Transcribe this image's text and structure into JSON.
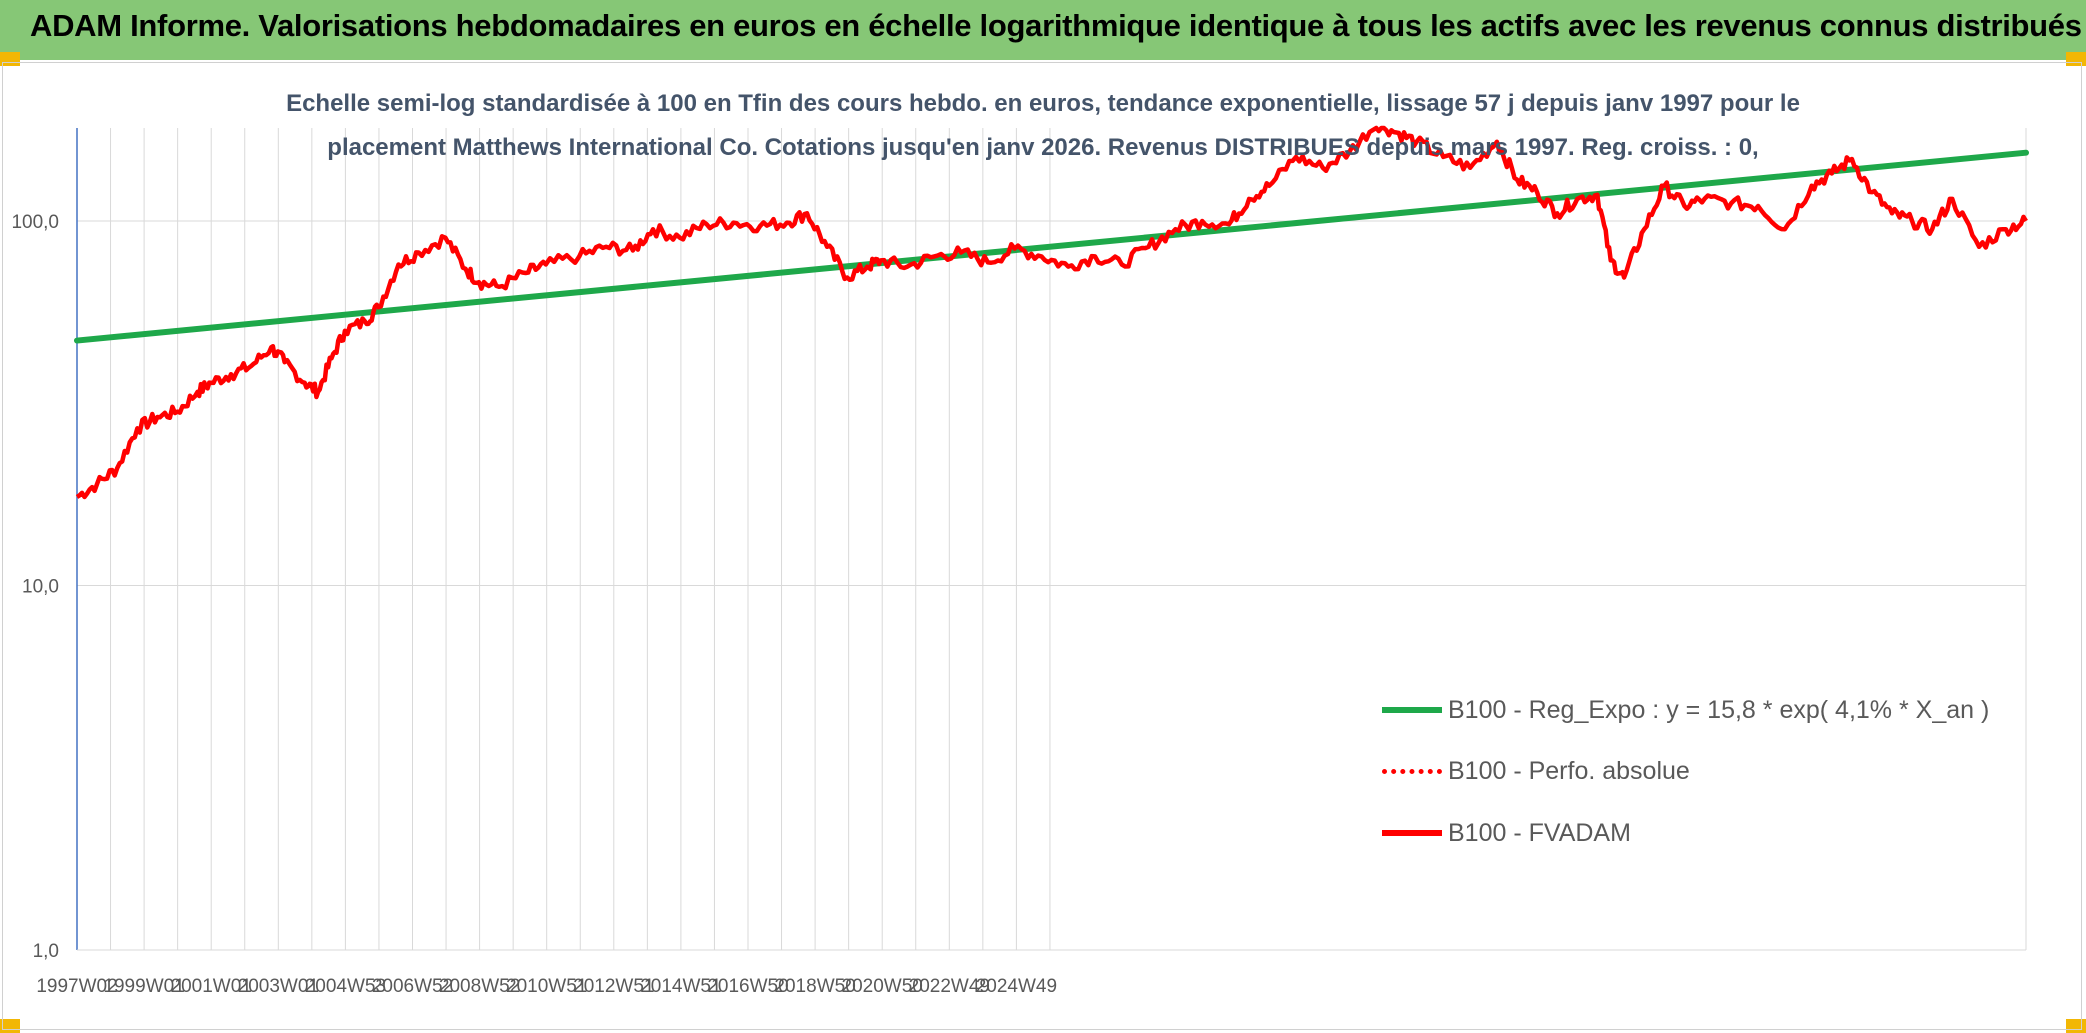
{
  "header": {
    "title": "ADAM Informe. Valorisations hebdomadaires en euros en échelle logarithmique identique à tous les actifs avec les revenus connus distribués"
  },
  "chart_data": {
    "type": "line",
    "title_line1": "Echelle semi-log standardisée à 100 en Tfin des cours hebdo. en euros, tendance exponentielle, lissage 57 j depuis janv 1997 pour le",
    "title_line2": "placement Matthews International Co. Cotations jusqu'en janv 2026. Revenus DISTRIBUES depuis mars 1997. Reg. croiss. : 0,",
    "y_scale": "log",
    "ylim": [
      1,
      180
    ],
    "y_ticks": [
      {
        "value": 100,
        "label": "100,0"
      },
      {
        "value": 10,
        "label": "10,0"
      },
      {
        "value": 1,
        "label": "1,0"
      }
    ],
    "x_ticks": [
      "1997W02",
      "1999W01",
      "2001W01",
      "2003W01",
      "2004W53",
      "2006W52",
      "2008W52",
      "2010W51",
      "2012W51",
      "2014W51",
      "2016W50",
      "2018W50",
      "2020W50",
      "2022W49",
      "2024W49"
    ],
    "xlim": [
      1997.0,
      2026.1
    ],
    "grid": "vertical and horizontal",
    "legend_position": "bottom-right",
    "colors": {
      "trend": "#1ea84a",
      "series": "#ff0000"
    },
    "series": [
      {
        "name": "B100 - Reg_Expo : y = 15,8 * exp( 4,1% *  X_an )",
        "style": "solid-green",
        "x": [
          1997.0,
          2026.1
        ],
        "values": [
          47,
          154
        ]
      },
      {
        "name": "B100 - Perfo. absolue",
        "style": "dotted-red",
        "x": [],
        "values": []
      },
      {
        "name": "B100 - FVADAM",
        "style": "solid-red",
        "x": [
          1997.0,
          1997.3,
          1997.6,
          1997.9,
          1998.2,
          1998.5,
          1998.8,
          1999.0,
          1999.3,
          1999.6,
          1999.9,
          2000.1,
          2000.4,
          2000.6,
          2000.8,
          2001.0,
          2001.3,
          2001.5,
          2001.8,
          2002.1,
          2002.5,
          2002.8,
          2003.0,
          2003.3,
          2003.7,
          2004.0,
          2004.5,
          2004.9,
          2005.3,
          2005.6,
          2006.0,
          2006.4,
          2006.8,
          2007.2,
          2007.6,
          2007.9,
          2008.2,
          2008.5,
          2008.8,
          2009.0,
          2009.4,
          2009.8,
          2010.2,
          2010.6,
          2011.0,
          2011.4,
          2011.8,
          2012.2,
          2012.6,
          2013.0,
          2013.4,
          2013.8,
          2014.2,
          2014.5,
          2014.8,
          2015.2,
          2015.6,
          2016.0,
          2016.4,
          2016.7,
          2017.0,
          2017.4,
          2017.8,
          2018.2,
          2018.5,
          2018.8,
          2019.1,
          2019.4,
          2019.7,
          2019.9,
          2020.1,
          2020.4,
          2020.7,
          2021.0,
          2021.3,
          2021.7,
          2022.1,
          2022.5,
          2022.9,
          2023.2,
          2023.5,
          2023.8,
          2024.1,
          2024.4,
          2024.7,
          2025.0,
          2025.4,
          2025.8,
          2026.1
        ],
        "values": [
          17.5,
          19,
          21,
          27,
          29,
          30,
          34,
          36,
          38,
          40,
          45,
          41,
          36,
          34,
          42,
          50,
          53,
          58,
          76,
          82,
          90,
          74,
          68,
          66,
          72,
          76,
          80,
          85,
          83,
          95,
          90,
          98,
          99,
          97,
          99,
          105,
          85,
          70,
          75,
          78,
          75,
          80,
          82,
          77,
          84,
          80,
          75,
          80,
          76,
          85,
          95,
          100,
          98,
          115,
          125,
          150,
          140,
          155,
          185,
          175,
          165,
          150,
          140,
          165,
          130,
          120,
          105,
          115,
          118,
          78,
          70,
          95,
          125,
          110,
          115,
          112,
          110,
          95,
          125,
          135,
          148,
          120,
          105,
          100,
          95,
          115,
          85,
          95,
          100
        ]
      }
    ]
  }
}
